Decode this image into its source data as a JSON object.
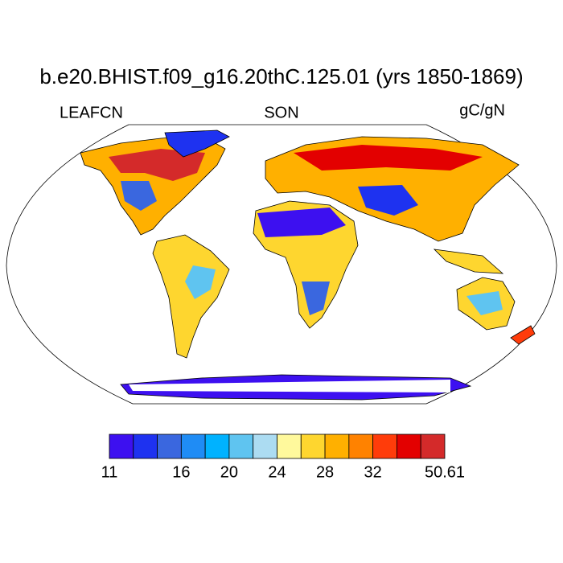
{
  "title": "b.e20.BHIST.f09_g16.20thC.125.01 (yrs 1850-1869)",
  "left_label": "LEAFCN",
  "center_label": "SON",
  "right_label": "gC/gN",
  "colorbar": {
    "colors": [
      "#3d10f0",
      "#1e32f0",
      "#3a67df",
      "#1f8cf5",
      "#00b2ff",
      "#5fc4f0",
      "#acdcf2",
      "#fff99c",
      "#fed62f",
      "#ffb000",
      "#ff8200",
      "#ff3c0a",
      "#e30000",
      "#d42a2a"
    ],
    "levels": [
      11,
      null,
      null,
      16,
      null,
      20,
      null,
      24,
      null,
      28,
      null,
      32,
      null,
      null,
      50.61
    ]
  }
}
